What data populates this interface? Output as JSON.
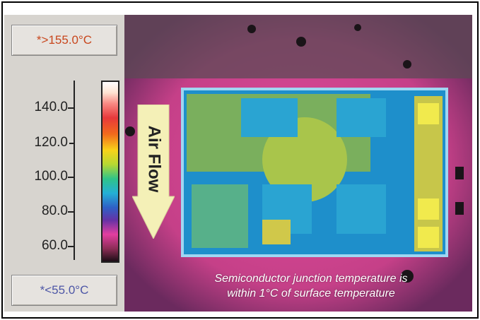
{
  "scale": {
    "max_label": "*>155.0°C",
    "min_label": "*<55.0°C",
    "ticks": [
      "140.0",
      "120.0",
      "100.0",
      "80.0",
      "60.0"
    ]
  },
  "airflow": {
    "label": "Air Flow"
  },
  "caption": {
    "line1": "Semiconductor junction temperature is",
    "line2": "within 1°C of surface temperature"
  },
  "colors": {
    "high_text": "#c8461c",
    "low_text": "#4d56a6",
    "arrow_fill": "#f4f0b7",
    "background_hot": "#e24b9c",
    "board_blue": "#1f9fd3"
  }
}
